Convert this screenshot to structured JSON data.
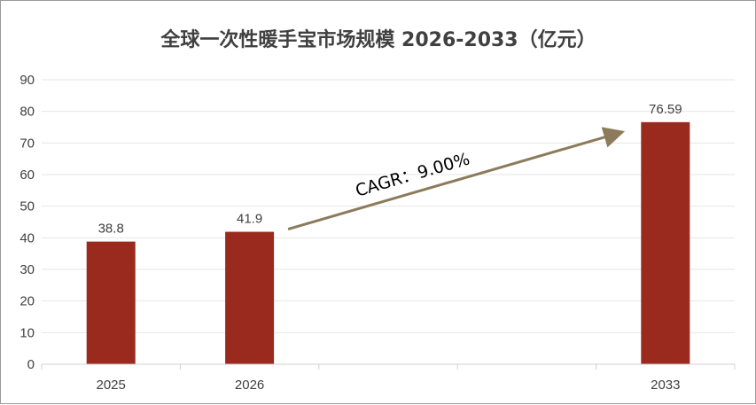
{
  "chart_data": {
    "type": "bar",
    "title": "全球一次性暖手宝市场规模 2026-2033（亿元）",
    "xlabel": "",
    "ylabel": "",
    "categories": [
      "2025",
      "2026",
      "",
      "",
      "2033"
    ],
    "values": [
      38.8,
      41.9,
      null,
      null,
      76.59
    ],
    "data_labels": [
      "38.8",
      "41.9",
      "",
      "",
      "76.59"
    ],
    "ylim": [
      0,
      90
    ],
    "y_ticks": [
      0,
      10,
      20,
      30,
      40,
      50,
      60,
      70,
      80,
      90
    ],
    "grid": true,
    "legend": "none",
    "bar_color": "#9a2a1e",
    "annotation": {
      "text": "CAGR：9.00%",
      "arrow_from_category": "2026",
      "arrow_to_category": "2033",
      "color": "#8b7b5a"
    }
  }
}
